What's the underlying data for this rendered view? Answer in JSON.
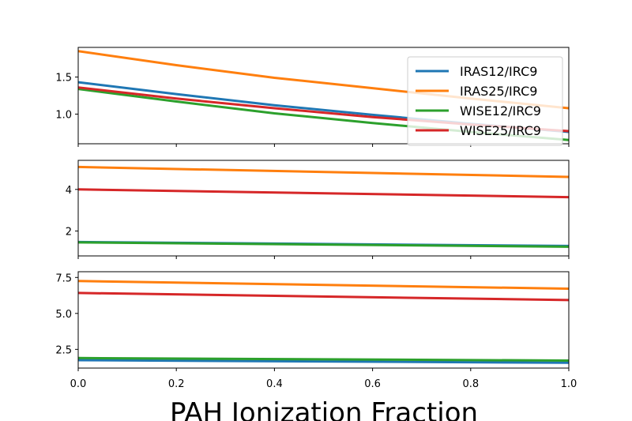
{
  "chart_data": {
    "type": "line",
    "xlabel": "PAH Ionization Fraction",
    "xlim": [
      0,
      1
    ],
    "xticks": [
      0,
      0.2,
      0.4,
      0.6,
      0.8,
      1
    ],
    "xtick_labels": [
      "0.0",
      "0.2",
      "0.4",
      "0.6",
      "0.8",
      "1.0"
    ],
    "legend": {
      "placement": "top-right",
      "entries": [
        {
          "name": "IRAS12/IRC9",
          "color": "#1f77b4"
        },
        {
          "name": "IRAS25/IRC9",
          "color": "#ff7f0e"
        },
        {
          "name": "WISE12/IRC9",
          "color": "#2ca02c"
        },
        {
          "name": "WISE25/IRC9",
          "color": "#d62728"
        }
      ]
    },
    "panels": [
      {
        "ylim": [
          0.6,
          1.9
        ],
        "yticks": [
          1.0,
          1.5
        ],
        "ytick_labels": [
          "1.0",
          "1.5"
        ],
        "series": [
          {
            "name": "IRAS12/IRC9",
            "color": "#1f77b4",
            "x": [
              0,
              0.2,
              0.4,
              0.6,
              0.8,
              1
            ],
            "y": [
              1.43,
              1.27,
              1.12,
              0.99,
              0.87,
              0.76
            ]
          },
          {
            "name": "IRAS25/IRC9",
            "color": "#ff7f0e",
            "x": [
              0,
              0.2,
              0.4,
              0.6,
              0.8,
              1
            ],
            "y": [
              1.85,
              1.66,
              1.49,
              1.35,
              1.21,
              1.08
            ]
          },
          {
            "name": "WISE12/IRC9",
            "color": "#2ca02c",
            "x": [
              0,
              0.2,
              0.4,
              0.6,
              0.8,
              1
            ],
            "y": [
              1.34,
              1.17,
              1.01,
              0.88,
              0.76,
              0.65
            ]
          },
          {
            "name": "WISE25/IRC9",
            "color": "#d62728",
            "x": [
              0,
              0.2,
              0.4,
              0.6,
              0.8,
              1
            ],
            "y": [
              1.36,
              1.21,
              1.08,
              0.96,
              0.86,
              0.77
            ]
          }
        ]
      },
      {
        "ylim": [
          0.8,
          5.4
        ],
        "yticks": [
          2,
          4
        ],
        "ytick_labels": [
          "2",
          "4"
        ],
        "series": [
          {
            "name": "IRAS12/IRC9",
            "color": "#1f77b4",
            "x": [
              0,
              1
            ],
            "y": [
              1.47,
              1.28
            ]
          },
          {
            "name": "IRAS25/IRC9",
            "color": "#ff7f0e",
            "x": [
              0,
              1
            ],
            "y": [
              5.08,
              4.6
            ]
          },
          {
            "name": "WISE12/IRC9",
            "color": "#2ca02c",
            "x": [
              0,
              1
            ],
            "y": [
              1.45,
              1.24
            ]
          },
          {
            "name": "WISE25/IRC9",
            "color": "#d62728",
            "x": [
              0,
              1
            ],
            "y": [
              4.0,
              3.63
            ]
          }
        ]
      },
      {
        "ylim": [
          1.2,
          7.9
        ],
        "yticks": [
          2.5,
          5.0,
          7.5
        ],
        "ytick_labels": [
          "2.5",
          "5.0",
          "7.5"
        ],
        "series": [
          {
            "name": "IRAS12/IRC9",
            "color": "#1f77b4",
            "x": [
              0,
              1
            ],
            "y": [
              1.75,
              1.57
            ]
          },
          {
            "name": "IRAS25/IRC9",
            "color": "#ff7f0e",
            "x": [
              0,
              1
            ],
            "y": [
              7.25,
              6.72
            ]
          },
          {
            "name": "WISE12/IRC9",
            "color": "#2ca02c",
            "x": [
              0,
              1
            ],
            "y": [
              1.9,
              1.72
            ]
          },
          {
            "name": "WISE25/IRC9",
            "color": "#d62728",
            "x": [
              0,
              1
            ],
            "y": [
              6.42,
              5.93
            ]
          }
        ]
      }
    ]
  }
}
